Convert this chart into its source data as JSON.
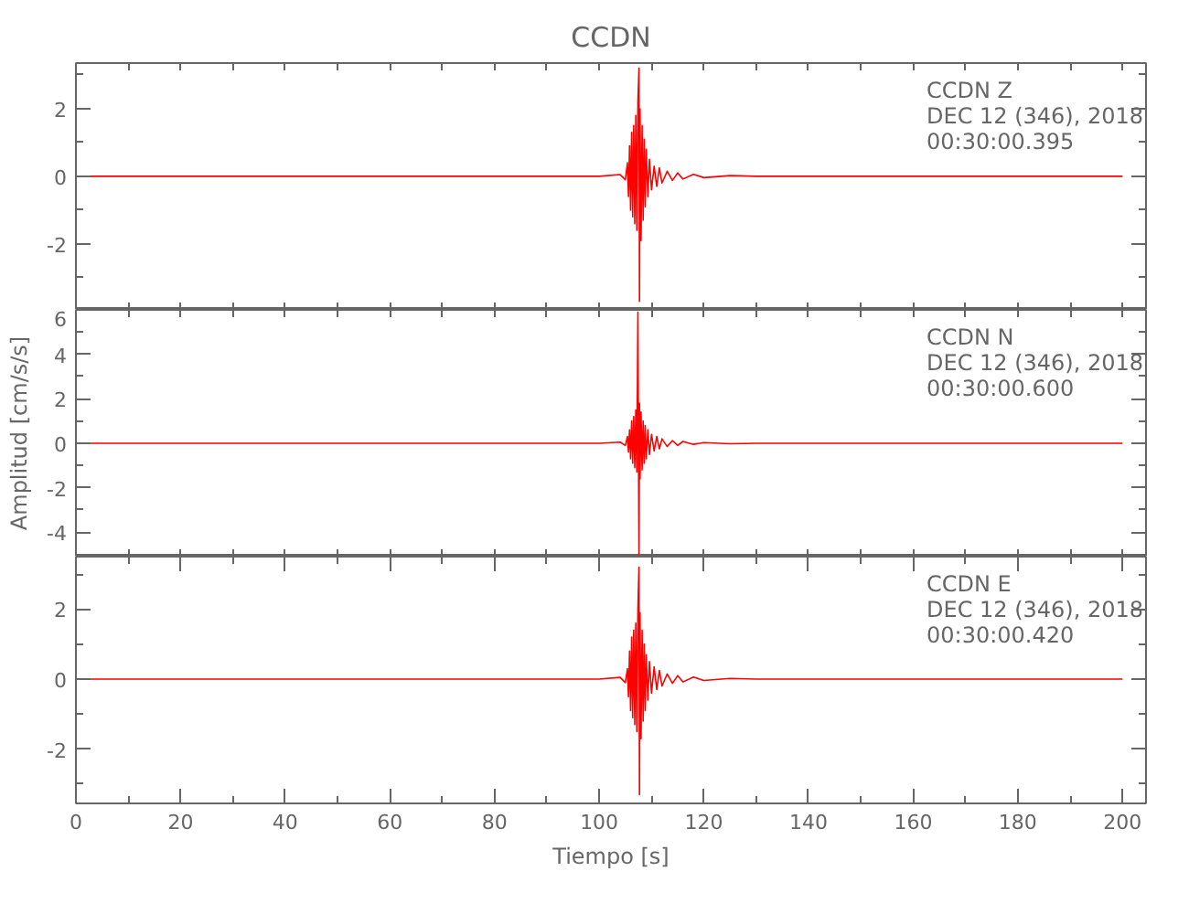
{
  "chart_data": [
    {
      "type": "line",
      "title": "CCDN",
      "annotations": [
        "CCDN   Z",
        "DEC 12 (346), 2018",
        "00:30:00.395"
      ],
      "tick_labels": "y",
      "x": [
        0,
        50,
        100,
        104,
        105,
        105.4,
        105.6,
        105.8,
        106.0,
        106.2,
        106.4,
        106.6,
        106.8,
        107.0,
        107.2,
        107.4,
        107.6,
        107.7,
        107.8,
        108.0,
        108.2,
        108.4,
        108.6,
        108.8,
        109.0,
        109.3,
        109.6,
        110,
        110.5,
        111,
        111.5,
        112,
        113,
        114,
        115,
        116,
        118,
        120,
        125,
        130,
        150,
        200
      ],
      "series": [
        {
          "color": "#ff0000",
          "values": [
            0,
            0,
            0,
            0.05,
            -0.1,
            0.4,
            -0.6,
            0.9,
            -1.0,
            1.3,
            -1.2,
            1.5,
            -1.4,
            1.8,
            -1.6,
            2.2,
            3.2,
            -3.7,
            2.0,
            -1.9,
            1.5,
            -1.3,
            1.1,
            -0.9,
            0.8,
            -0.6,
            0.5,
            -0.4,
            0.3,
            -0.3,
            0.25,
            -0.2,
            0.15,
            -0.12,
            0.1,
            -0.08,
            0.06,
            -0.04,
            0.02,
            0,
            0,
            0
          ]
        }
      ],
      "xlim": [
        0,
        204.5
      ],
      "ylim": [
        -3.95,
        3.35
      ],
      "xticks": [
        {
          "value": 0,
          "label": null
        },
        {
          "value": 10,
          "label": null
        },
        {
          "value": 20,
          "label": null
        },
        {
          "value": 30,
          "label": null
        },
        {
          "value": 40,
          "label": null
        },
        {
          "value": 50,
          "label": null
        },
        {
          "value": 60,
          "label": null
        },
        {
          "value": 70,
          "label": null
        },
        {
          "value": 80,
          "label": null
        },
        {
          "value": 90,
          "label": null
        },
        {
          "value": 100,
          "label": null
        },
        {
          "value": 110,
          "label": null
        },
        {
          "value": 120,
          "label": null
        },
        {
          "value": 130,
          "label": null
        },
        {
          "value": 140,
          "label": null
        },
        {
          "value": 150,
          "label": null
        },
        {
          "value": 160,
          "label": null
        },
        {
          "value": 170,
          "label": null
        },
        {
          "value": 180,
          "label": null
        },
        {
          "value": 190,
          "label": null
        },
        {
          "value": 200,
          "label": null
        }
      ],
      "yticks": [
        {
          "value": -3,
          "label": null
        },
        -2,
        {
          "value": -1,
          "label": null
        },
        0,
        {
          "value": 1,
          "label": null
        },
        2,
        {
          "value": 3,
          "label": null
        }
      ]
    },
    {
      "type": "line",
      "ylabel": "Amplitud [cm/s/s]",
      "annotations": [
        "CCDN   N",
        "DEC 12 (346), 2018",
        "00:30:00.600"
      ],
      "tick_labels": "y",
      "x": [
        0,
        50,
        100,
        104,
        105,
        105.4,
        105.6,
        105.8,
        106.0,
        106.2,
        106.4,
        106.6,
        106.8,
        107.0,
        107.2,
        107.4,
        107.6,
        107.7,
        107.8,
        108.0,
        108.2,
        108.4,
        108.6,
        108.8,
        109.0,
        109.3,
        109.6,
        110,
        110.5,
        111,
        111.5,
        112,
        113,
        114,
        115,
        116,
        118,
        120,
        125,
        130,
        150,
        200
      ],
      "series": [
        {
          "color": "#ff0000",
          "values": [
            0,
            0,
            0,
            0.05,
            -0.1,
            0.3,
            -0.4,
            0.6,
            -0.7,
            1.0,
            -0.9,
            1.2,
            -1.1,
            1.5,
            -1.3,
            5.9,
            -5.0,
            1.8,
            -1.6,
            1.4,
            -1.2,
            1.0,
            -0.9,
            0.8,
            -0.7,
            0.6,
            -0.5,
            0.4,
            -0.35,
            0.3,
            -0.25,
            0.2,
            -0.15,
            0.12,
            -0.1,
            0.08,
            -0.05,
            0.03,
            -0.02,
            0,
            0,
            0
          ]
        }
      ],
      "xlim": [
        0,
        204.5
      ],
      "ylim": [
        -5.1,
        6
      ],
      "xticks": [
        {
          "value": 0,
          "label": null
        },
        {
          "value": 10,
          "label": null
        },
        {
          "value": 20,
          "label": null
        },
        {
          "value": 30,
          "label": null
        },
        {
          "value": 40,
          "label": null
        },
        {
          "value": 50,
          "label": null
        },
        {
          "value": 60,
          "label": null
        },
        {
          "value": 70,
          "label": null
        },
        {
          "value": 80,
          "label": null
        },
        {
          "value": 90,
          "label": null
        },
        {
          "value": 100,
          "label": null
        },
        {
          "value": 110,
          "label": null
        },
        {
          "value": 120,
          "label": null
        },
        {
          "value": 130,
          "label": null
        },
        {
          "value": 140,
          "label": null
        },
        {
          "value": 150,
          "label": null
        },
        {
          "value": 160,
          "label": null
        },
        {
          "value": 170,
          "label": null
        },
        {
          "value": 180,
          "label": null
        },
        {
          "value": 190,
          "label": null
        },
        {
          "value": 200,
          "label": null
        }
      ],
      "yticks": [
        {
          "value": -5,
          "label": null
        },
        -4,
        {
          "value": -3,
          "label": null
        },
        -2,
        {
          "value": -1,
          "label": null
        },
        0,
        {
          "value": 1,
          "label": null
        },
        2,
        {
          "value": 3,
          "label": null
        },
        4,
        {
          "value": 5,
          "label": null
        },
        6
      ]
    },
    {
      "type": "line",
      "xlabel": "Tiempo [s]",
      "annotations": [
        "CCDN   E",
        "DEC 12 (346), 2018",
        "00:30:00.420"
      ],
      "x": [
        0,
        50,
        100,
        104,
        105,
        105.4,
        105.6,
        105.8,
        106.0,
        106.2,
        106.4,
        106.6,
        106.8,
        107.0,
        107.2,
        107.4,
        107.6,
        107.7,
        107.8,
        108.0,
        108.2,
        108.4,
        108.6,
        108.8,
        109.0,
        109.3,
        109.6,
        110,
        110.5,
        111,
        111.5,
        112,
        113,
        114,
        115,
        116,
        118,
        120,
        125,
        130,
        150,
        200
      ],
      "series": [
        {
          "color": "#ff0000",
          "values": [
            0,
            0,
            0,
            0.05,
            -0.1,
            0.3,
            -0.5,
            0.8,
            -0.9,
            1.2,
            -1.1,
            1.4,
            -1.3,
            1.6,
            -1.5,
            2.0,
            3.2,
            -3.3,
            1.9,
            -1.7,
            1.4,
            -1.2,
            1.0,
            -0.9,
            0.7,
            -0.6,
            0.5,
            -0.4,
            0.35,
            -0.3,
            0.25,
            -0.2,
            0.15,
            -0.12,
            0.1,
            -0.08,
            0.06,
            -0.04,
            0.02,
            0,
            0,
            0
          ]
        }
      ],
      "xlim": [
        0,
        204.5
      ],
      "ylim": [
        -3.55,
        3.5
      ],
      "xticks": [
        0,
        {
          "value": 10,
          "label": null
        },
        20,
        {
          "value": 30,
          "label": null
        },
        40,
        {
          "value": 50,
          "label": null
        },
        60,
        {
          "value": 70,
          "label": null
        },
        80,
        {
          "value": 90,
          "label": null
        },
        100,
        {
          "value": 110,
          "label": null
        },
        120,
        {
          "value": 130,
          "label": null
        },
        140,
        {
          "value": 150,
          "label": null
        },
        160,
        {
          "value": 170,
          "label": null
        },
        180,
        {
          "value": 190,
          "label": null
        },
        200
      ],
      "yticks": [
        {
          "value": -3,
          "label": null
        },
        -2,
        {
          "value": -1,
          "label": null
        },
        0,
        {
          "value": 1,
          "label": null
        },
        2,
        {
          "value": 3,
          "label": null
        }
      ]
    }
  ]
}
